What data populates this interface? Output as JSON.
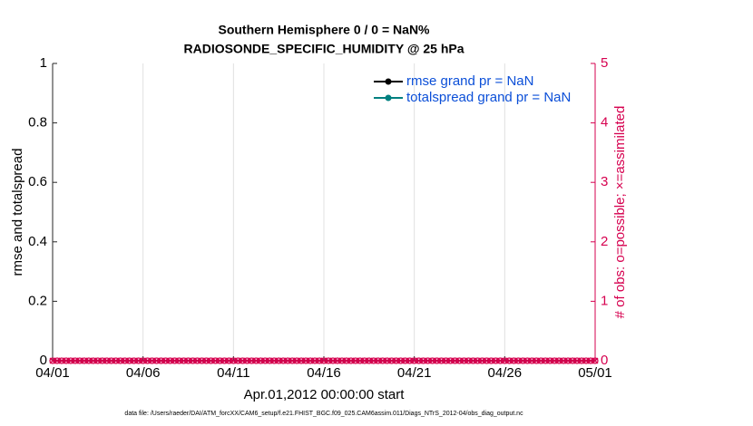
{
  "chart_data": {
    "type": "line",
    "title": [
      "Southern Hemisphere 0 / 0 = NaN%",
      "RADIOSONDE_SPECIFIC_HUMIDITY @ 25 hPa"
    ],
    "xlabel": "Apr.01,2012 00:00:00 start",
    "ylabel": "rmse and totalspread",
    "y2label": "# of obs: o=possible; ×=assimilated",
    "footnote": "data file: /Users/raeder/DAI/ATM_forcXX/CAM6_setup/f.e21.FHIST_BGC.f09_025.CAM6assim.011/Diags_NTrS_2012-04/obs_diag_output.nc",
    "xlim": [
      0,
      30
    ],
    "xticks": [
      {
        "value": 0,
        "label": "04/01"
      },
      {
        "value": 5,
        "label": "04/06"
      },
      {
        "value": 10,
        "label": "04/11"
      },
      {
        "value": 15,
        "label": "04/16"
      },
      {
        "value": 20,
        "label": "04/21"
      },
      {
        "value": 25,
        "label": "04/26"
      },
      {
        "value": 30,
        "label": "05/01"
      }
    ],
    "ylim": [
      0,
      1
    ],
    "yticks": [
      0,
      0.2,
      0.4,
      0.6,
      0.8,
      1
    ],
    "y2lim": [
      0,
      5
    ],
    "y2ticks": [
      0,
      1,
      2,
      3,
      4,
      5
    ],
    "grid": "x",
    "legend": "upper right",
    "legend_text_color": "#0b4fd8",
    "y2_color": "#d6004f",
    "x": [
      0,
      0.25,
      0.5,
      0.75,
      1,
      1.25,
      1.5,
      1.75,
      2,
      2.25,
      2.5,
      2.75,
      3,
      3.25,
      3.5,
      3.75,
      4,
      4.25,
      4.5,
      4.75,
      5,
      5.25,
      5.5,
      5.75,
      6,
      6.25,
      6.5,
      6.75,
      7,
      7.25,
      7.5,
      7.75,
      8,
      8.25,
      8.5,
      8.75,
      9,
      9.25,
      9.5,
      9.75,
      10,
      10.25,
      10.5,
      10.75,
      11,
      11.25,
      11.5,
      11.75,
      12,
      12.25,
      12.5,
      12.75,
      13,
      13.25,
      13.5,
      13.75,
      14,
      14.25,
      14.5,
      14.75,
      15,
      15.25,
      15.5,
      15.75,
      16,
      16.25,
      16.5,
      16.75,
      17,
      17.25,
      17.5,
      17.75,
      18,
      18.25,
      18.5,
      18.75,
      19,
      19.25,
      19.5,
      19.75,
      20,
      20.25,
      20.5,
      20.75,
      21,
      21.25,
      21.5,
      21.75,
      22,
      22.25,
      22.5,
      22.75,
      23,
      23.25,
      23.5,
      23.75,
      24,
      24.25,
      24.5,
      24.75,
      25,
      25.25,
      25.5,
      25.75,
      26,
      26.25,
      26.5,
      26.75,
      27,
      27.25,
      27.5,
      27.75,
      28,
      28.25,
      28.5,
      28.75,
      29,
      29.25,
      29.5,
      29.75,
      30
    ],
    "series": [
      {
        "name": "rmse grand pr = NaN",
        "color": "#000000",
        "marker": "dot",
        "values": [
          null,
          null,
          null,
          null,
          null,
          null,
          null,
          null,
          null,
          null,
          null,
          null,
          null,
          null,
          null,
          null,
          null,
          null,
          null,
          null,
          null,
          null,
          null,
          null,
          null,
          null,
          null,
          null,
          null,
          null,
          null,
          null,
          null,
          null,
          null,
          null,
          null,
          null,
          null,
          null,
          null,
          null,
          null,
          null,
          null,
          null,
          null,
          null,
          null,
          null,
          null,
          null,
          null,
          null,
          null,
          null,
          null,
          null,
          null,
          null,
          null,
          null,
          null,
          null,
          null,
          null,
          null,
          null,
          null,
          null,
          null,
          null,
          null,
          null,
          null,
          null,
          null,
          null,
          null,
          null,
          null,
          null,
          null,
          null,
          null,
          null,
          null,
          null,
          null,
          null,
          null,
          null,
          null,
          null,
          null,
          null,
          null,
          null,
          null,
          null,
          null,
          null,
          null,
          null,
          null,
          null,
          null,
          null,
          null,
          null,
          null,
          null,
          null,
          null,
          null,
          null,
          null,
          null,
          null,
          null,
          null
        ]
      },
      {
        "name": "totalspread grand pr = NaN",
        "color": "#008080",
        "marker": "dot",
        "values": [
          null,
          null,
          null,
          null,
          null,
          null,
          null,
          null,
          null,
          null,
          null,
          null,
          null,
          null,
          null,
          null,
          null,
          null,
          null,
          null,
          null,
          null,
          null,
          null,
          null,
          null,
          null,
          null,
          null,
          null,
          null,
          null,
          null,
          null,
          null,
          null,
          null,
          null,
          null,
          null,
          null,
          null,
          null,
          null,
          null,
          null,
          null,
          null,
          null,
          null,
          null,
          null,
          null,
          null,
          null,
          null,
          null,
          null,
          null,
          null,
          null,
          null,
          null,
          null,
          null,
          null,
          null,
          null,
          null,
          null,
          null,
          null,
          null,
          null,
          null,
          null,
          null,
          null,
          null,
          null,
          null,
          null,
          null,
          null,
          null,
          null,
          null,
          null,
          null,
          null,
          null,
          null,
          null,
          null,
          null,
          null,
          null,
          null,
          null,
          null,
          null,
          null,
          null,
          null,
          null,
          null,
          null,
          null,
          null,
          null,
          null,
          null,
          null,
          null,
          null,
          null,
          null,
          null,
          null,
          null,
          null
        ]
      },
      {
        "color": "#d6004f",
        "marker": "o",
        "axis": "y2",
        "values": [
          0,
          0,
          0,
          0,
          0,
          0,
          0,
          0,
          0,
          0,
          0,
          0,
          0,
          0,
          0,
          0,
          0,
          0,
          0,
          0,
          0,
          0,
          0,
          0,
          0,
          0,
          0,
          0,
          0,
          0,
          0,
          0,
          0,
          0,
          0,
          0,
          0,
          0,
          0,
          0,
          0,
          0,
          0,
          0,
          0,
          0,
          0,
          0,
          0,
          0,
          0,
          0,
          0,
          0,
          0,
          0,
          0,
          0,
          0,
          0,
          0,
          0,
          0,
          0,
          0,
          0,
          0,
          0,
          0,
          0,
          0,
          0,
          0,
          0,
          0,
          0,
          0,
          0,
          0,
          0,
          0,
          0,
          0,
          0,
          0,
          0,
          0,
          0,
          0,
          0,
          0,
          0,
          0,
          0,
          0,
          0,
          0,
          0,
          0,
          0,
          0,
          0,
          0,
          0,
          0,
          0,
          0,
          0,
          0,
          0,
          0,
          0,
          0,
          0,
          0,
          0,
          0,
          0,
          0,
          0,
          0
        ]
      },
      {
        "color": "#d6004f",
        "marker": "x",
        "axis": "y2",
        "values": [
          0,
          0,
          0,
          0,
          0,
          0,
          0,
          0,
          0,
          0,
          0,
          0,
          0,
          0,
          0,
          0,
          0,
          0,
          0,
          0,
          0,
          0,
          0,
          0,
          0,
          0,
          0,
          0,
          0,
          0,
          0,
          0,
          0,
          0,
          0,
          0,
          0,
          0,
          0,
          0,
          0,
          0,
          0,
          0,
          0,
          0,
          0,
          0,
          0,
          0,
          0,
          0,
          0,
          0,
          0,
          0,
          0,
          0,
          0,
          0,
          0,
          0,
          0,
          0,
          0,
          0,
          0,
          0,
          0,
          0,
          0,
          0,
          0,
          0,
          0,
          0,
          0,
          0,
          0,
          0,
          0,
          0,
          0,
          0,
          0,
          0,
          0,
          0,
          0,
          0,
          0,
          0,
          0,
          0,
          0,
          0,
          0,
          0,
          0,
          0,
          0,
          0,
          0,
          0,
          0,
          0,
          0,
          0,
          0,
          0,
          0,
          0,
          0,
          0,
          0,
          0,
          0,
          0,
          0,
          0,
          0
        ]
      }
    ]
  }
}
